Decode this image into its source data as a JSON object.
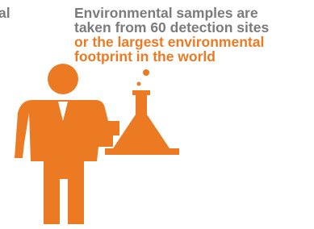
{
  "fragment": "al",
  "caption": {
    "lines_gray": [
      "Environmental samples are",
      "taken from 60 detection sites"
    ],
    "lines_orange": [
      "or the largest environmental",
      "footprint in the world"
    ]
  }
}
